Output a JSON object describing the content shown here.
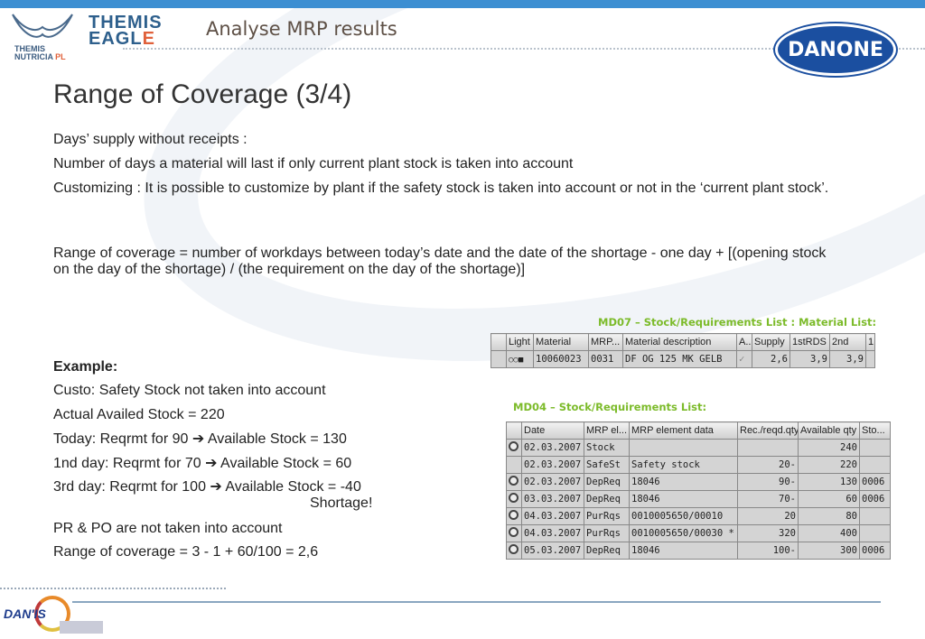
{
  "header": {
    "title": "Analyse MRP results",
    "logo_left": "THEMIS NUTRICIA PL",
    "logo_mid": "THEMIS EAGLE",
    "logo_right": "DANONE",
    "footer_logo": "DAN'IS"
  },
  "slide": {
    "title": "Range of Coverage (3/4)",
    "lines": [
      "Days’ supply without receipts :",
      "Number of days a material will last if only current plant stock is taken into account",
      "Customizing : It is possible to customize by plant if the safety stock is taken into account or not in the ‘current plant stock’.",
      "Range of coverage = number of workdays between today’s date and the date of the shortage - one day  + [(opening stock on the day of the shortage) / (the requirement on the day of the shortage)]"
    ],
    "example": {
      "heading": "Example:",
      "lines": [
        "Custo: Safety Stock not taken into account",
        "Actual Availed Stock = 220",
        "Today: Reqrmt for 90 ➔ Available Stock = 130",
        "1nd day: Reqrmt for 70 ➔ Available Stock = 60",
        "3rd day: Reqrmt for 100 ➔ Available Stock = -40",
        "Shortage!",
        "PR & PO are not taken into account",
        "Range of coverage = 3 -  1  + 60/100 = 2,6"
      ]
    }
  },
  "md07": {
    "caption": "MD07 – Stock/Requirements List : Material List:",
    "headers": [
      "",
      "Light",
      "Material",
      "MRP...",
      "Material description",
      "A...",
      "Supply",
      "1stRDS",
      "2nd",
      "1"
    ],
    "row": [
      "",
      "",
      "10060023",
      "0031",
      "DF OG 125 MK GELB",
      "✓",
      "2,6",
      "3,9",
      "3,9",
      ""
    ]
  },
  "md04": {
    "caption": "MD04 – Stock/Requirements List:",
    "headers": [
      "",
      "Date",
      "MRP el...",
      "MRP element data",
      "Rec./reqd.qty",
      "Available qty",
      "Sto..."
    ],
    "rows": [
      [
        "02.03.2007",
        "Stock",
        "",
        "",
        "240",
        ""
      ],
      [
        "02.03.2007",
        "SafeSt",
        "Safety stock",
        "20-",
        "220",
        ""
      ],
      [
        "02.03.2007",
        "DepReq",
        "18046",
        "90-",
        "130",
        "0006"
      ],
      [
        "03.03.2007",
        "DepReq",
        "18046",
        "70-",
        "60",
        "0006"
      ],
      [
        "04.03.2007",
        "PurRqs",
        "0010005650/00010",
        "20",
        "80",
        ""
      ],
      [
        "04.03.2007",
        "PurRqs",
        "0010005650/00030 *",
        "320",
        "400",
        ""
      ],
      [
        "05.03.2007",
        "DepReq",
        "18046",
        "100-",
        "300",
        "0006"
      ]
    ]
  }
}
